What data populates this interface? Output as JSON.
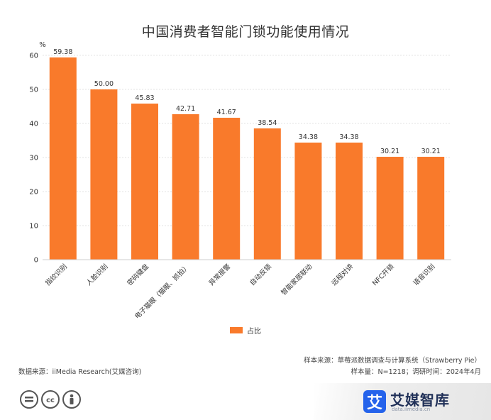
{
  "chart_data": {
    "type": "bar",
    "title": "中国消费者智能门锁功能使用情况",
    "ylabel": "%",
    "ylim": [
      0,
      60
    ],
    "yticks": [
      0,
      10,
      20,
      30,
      40,
      50,
      60
    ],
    "grid": true,
    "categories": [
      "指纹识别",
      "人脸识别",
      "密码键盘",
      "电子猫眼（猫眼、抓拍）",
      "异常报警",
      "自动反锁",
      "智能家居联动",
      "远程对讲",
      "NFC开锁",
      "语音识别"
    ],
    "series": [
      {
        "name": "占比",
        "values": [
          59.38,
          50.0,
          45.83,
          42.71,
          41.67,
          38.54,
          34.38,
          34.38,
          30.21,
          30.21
        ]
      }
    ],
    "value_labels": [
      "59.38",
      "50.00",
      "45.83",
      "42.71",
      "41.67",
      "38.54",
      "34.38",
      "34.38",
      "30.21",
      "30.21"
    ],
    "legend_position": "bottom-center",
    "bar_color": "#f97a2b"
  },
  "footer": {
    "data_source": "数据来源：iiMedia Research(艾媒咨询)",
    "sample_source": "样本来源：草莓派数据调查与计算系统（Strawberry Pie）",
    "sample_info": "样本量：N=1218；调研时间：2024年4月"
  },
  "brand": {
    "logo_char": "艾",
    "name": "艾媒智库",
    "url": "data.iimedia.cn"
  },
  "license_icons": [
    "equals-icon",
    "cc-icon",
    "person-icon"
  ]
}
